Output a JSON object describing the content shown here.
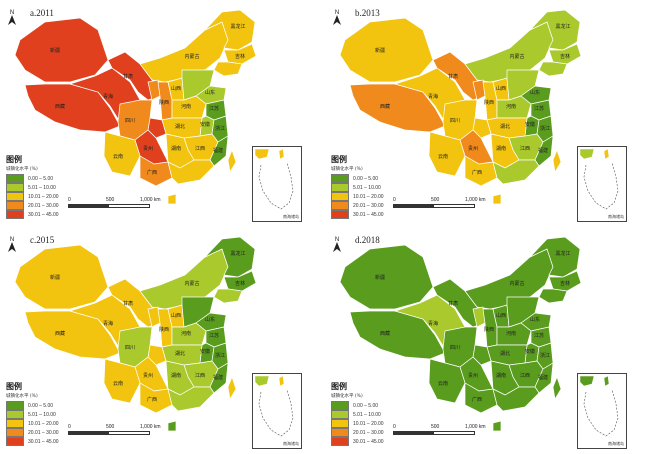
{
  "legend": {
    "title": "图例",
    "subtitle": "城镇化水平 (%)",
    "classes": [
      {
        "range": "0.00 – 5.00",
        "color": "#5a9c1e"
      },
      {
        "range": "5.01 – 10.00",
        "color": "#a9c92c"
      },
      {
        "range": "10.01 – 20.00",
        "color": "#f2c40f"
      },
      {
        "range": "20.01 – 30.00",
        "color": "#f08a1c"
      },
      {
        "range": "30.01 – 45.00",
        "color": "#e0401e"
      }
    ]
  },
  "scale": {
    "ticks": [
      "0",
      "500",
      "1,000 km"
    ]
  },
  "inset_caption": "南海诸岛",
  "panels": [
    {
      "title": "a.2011",
      "colors": {
        "xj": "#e0401e",
        "xz": "#e0401e",
        "qh": "#e0401e",
        "gs": "#e0401e",
        "nm": "#f2c40f",
        "hlj": "#f2c40f",
        "jl": "#f2c40f",
        "ln": "#f2c40f",
        "nx": "#f08a1c",
        "sx3": "#f08a1c",
        "sc": "#f08a1c",
        "yn": "#f2c40f",
        "gz": "#e0401e",
        "gx": "#f08a1c",
        "gd": "#f2c40f",
        "hn": "#f2c40f",
        "hb": "#f2c40f",
        "hen": "#f2c40f",
        "sx": "#f2c40f",
        "hb2": "#a9c92c",
        "sd": "#a9c92c",
        "js": "#5a9c1e",
        "zj": "#5a9c1e",
        "fj": "#5a9c1e",
        "jx": "#f2c40f",
        "ah": "#a9c92c",
        "cq": "#e0401e",
        "hain": "#f2c40f",
        "tw": "#f2c40f"
      },
      "labels": {
        "xj": "新疆",
        "xz": "西藏",
        "qh": "青海",
        "gs": "甘肃",
        "nm": "内蒙古",
        "hlj": "黑龙江",
        "jl": "吉林",
        "sc": "四川",
        "yn": "云南",
        "gz": "贵州",
        "gx": "广西",
        "hn": "湖南",
        "hb": "湖北",
        "hen": "河南",
        "sd": "山东",
        "js": "江苏",
        "zj": "浙江",
        "jx": "江西",
        "ah": "安徽",
        "fj": "福建",
        "sx3": "陕西",
        "sx": "山西"
      }
    },
    {
      "title": "b.2013",
      "colors": {
        "xj": "#f2c40f",
        "xz": "#f08a1c",
        "qh": "#f2c40f",
        "gs": "#f08a1c",
        "nm": "#a9c92c",
        "hlj": "#a9c92c",
        "jl": "#a9c92c",
        "ln": "#a9c92c",
        "nx": "#f08a1c",
        "sx3": "#f2c40f",
        "sc": "#f2c40f",
        "yn": "#f2c40f",
        "gz": "#f08a1c",
        "gx": "#f2c40f",
        "gd": "#a9c92c",
        "hn": "#f2c40f",
        "hb": "#f2c40f",
        "hen": "#a9c92c",
        "sx": "#f2c40f",
        "hb2": "#a9c92c",
        "sd": "#5a9c1e",
        "js": "#5a9c1e",
        "zj": "#5a9c1e",
        "fj": "#5a9c1e",
        "jx": "#a9c92c",
        "ah": "#5a9c1e",
        "cq": "#f2c40f",
        "hain": "#f2c40f",
        "tw": "#f2c40f"
      },
      "labels": {
        "xj": "新疆",
        "xz": "西藏",
        "qh": "青海",
        "gs": "甘肃",
        "nm": "内蒙古",
        "hlj": "黑龙江",
        "jl": "吉林",
        "sc": "四川",
        "yn": "云南",
        "gz": "贵州",
        "gx": "广西",
        "hn": "湖南",
        "hb": "湖北",
        "hen": "河南",
        "sd": "山东",
        "js": "江苏",
        "zj": "浙江",
        "jx": "江西",
        "ah": "安徽",
        "fj": "福建",
        "sx3": "陕西",
        "sx": "山西"
      }
    },
    {
      "title": "c.2015",
      "colors": {
        "xj": "#f2c40f",
        "xz": "#f2c40f",
        "qh": "#f2c40f",
        "gs": "#f2c40f",
        "nm": "#a9c92c",
        "hlj": "#5a9c1e",
        "jl": "#5a9c1e",
        "ln": "#a9c92c",
        "nx": "#f2c40f",
        "sx3": "#f2c40f",
        "sc": "#a9c92c",
        "yn": "#f2c40f",
        "gz": "#f2c40f",
        "gx": "#f2c40f",
        "gd": "#a9c92c",
        "hn": "#a9c92c",
        "hb": "#a9c92c",
        "hen": "#a9c92c",
        "sx": "#f2c40f",
        "hb2": "#5a9c1e",
        "sd": "#5a9c1e",
        "js": "#5a9c1e",
        "zj": "#5a9c1e",
        "fj": "#5a9c1e",
        "jx": "#a9c92c",
        "ah": "#5a9c1e",
        "cq": "#f2c40f",
        "hain": "#5a9c1e",
        "tw": "#f2c40f"
      },
      "labels": {
        "xj": "新疆",
        "xz": "西藏",
        "qh": "青海",
        "gs": "甘肃",
        "nm": "内蒙古",
        "hlj": "黑龙江",
        "jl": "吉林",
        "sc": "四川",
        "yn": "云南",
        "gz": "贵州",
        "gx": "广西",
        "hn": "湖南",
        "hb": "湖北",
        "hen": "河南",
        "sd": "山东",
        "js": "江苏",
        "zj": "浙江",
        "jx": "江西",
        "ah": "安徽",
        "fj": "福建",
        "sx3": "陕西",
        "sx": "山西"
      }
    },
    {
      "title": "d.2018",
      "colors": {
        "xj": "#5a9c1e",
        "xz": "#5a9c1e",
        "qh": "#a9c92c",
        "gs": "#5a9c1e",
        "nm": "#5a9c1e",
        "hlj": "#5a9c1e",
        "jl": "#5a9c1e",
        "ln": "#5a9c1e",
        "nx": "#a9c92c",
        "sx3": "#5a9c1e",
        "sc": "#5a9c1e",
        "yn": "#5a9c1e",
        "gz": "#5a9c1e",
        "gx": "#5a9c1e",
        "gd": "#5a9c1e",
        "hn": "#5a9c1e",
        "hb": "#5a9c1e",
        "hen": "#5a9c1e",
        "sx": "#5a9c1e",
        "hb2": "#5a9c1e",
        "sd": "#5a9c1e",
        "js": "#5a9c1e",
        "zj": "#5a9c1e",
        "fj": "#5a9c1e",
        "jx": "#5a9c1e",
        "ah": "#5a9c1e",
        "cq": "#5a9c1e",
        "hain": "#5a9c1e",
        "tw": "#5a9c1e"
      },
      "labels": {
        "xj": "新疆",
        "xz": "西藏",
        "qh": "青海",
        "gs": "甘肃",
        "nm": "内蒙古",
        "hlj": "黑龙江",
        "jl": "吉林",
        "sc": "四川",
        "yn": "云南",
        "gz": "贵州",
        "gx": "广西",
        "hn": "湖南",
        "hb": "湖北",
        "hen": "河南",
        "sd": "山东",
        "js": "江苏",
        "zj": "浙江",
        "jx": "江西",
        "ah": "安徽",
        "fj": "福建",
        "sx3": "陕西",
        "sx": "山西"
      }
    }
  ]
}
